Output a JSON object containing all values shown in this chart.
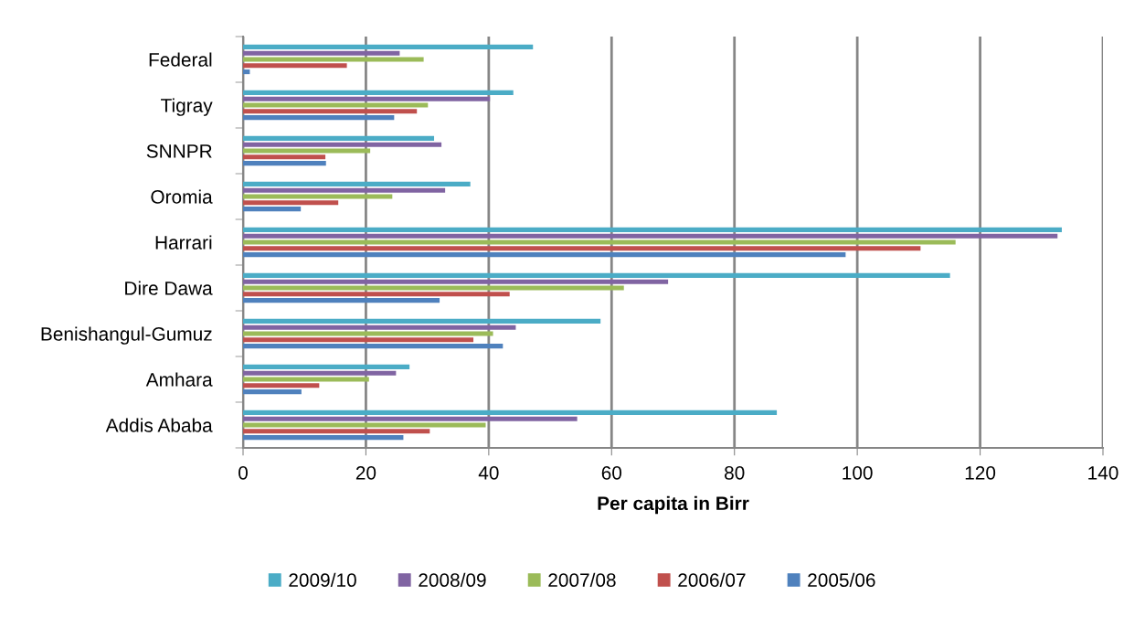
{
  "chart_data": {
    "type": "bar",
    "orientation": "horizontal",
    "xlabel": "Per capita in Birr",
    "categories": [
      "Federal",
      "Tigray",
      "SNNPR",
      "Oromia",
      "Harrari",
      "Dire Dawa",
      "Benishangul-Gumuz",
      "Amhara",
      "Addis Ababa"
    ],
    "series": [
      {
        "name": "2009/10",
        "color": "#4bacc6",
        "values": [
          47.2,
          44.0,
          31.1,
          37.0,
          133.3,
          115.1,
          58.2,
          27.1,
          86.9
        ]
      },
      {
        "name": "2008/09",
        "color": "#8064a2",
        "values": [
          25.5,
          40.2,
          32.3,
          32.9,
          132.6,
          69.2,
          44.4,
          24.9,
          54.4
        ]
      },
      {
        "name": "2007/08",
        "color": "#9bbb59",
        "values": [
          29.4,
          30.1,
          20.7,
          24.3,
          116.0,
          62.0,
          40.7,
          20.5,
          39.5
        ]
      },
      {
        "name": "2006/07",
        "color": "#c0504d",
        "values": [
          16.9,
          28.3,
          13.4,
          15.5,
          110.3,
          43.4,
          37.5,
          12.4,
          30.4
        ]
      },
      {
        "name": "2005/06",
        "color": "#4f81bd",
        "values": [
          1.1,
          24.6,
          13.5,
          9.4,
          98.1,
          32.0,
          42.3,
          9.5,
          26.1
        ]
      }
    ],
    "xlim": [
      0,
      140
    ],
    "xticks": [
      0,
      20,
      40,
      60,
      80,
      100,
      120,
      140
    ],
    "grid": "x",
    "legend": "bottom"
  }
}
